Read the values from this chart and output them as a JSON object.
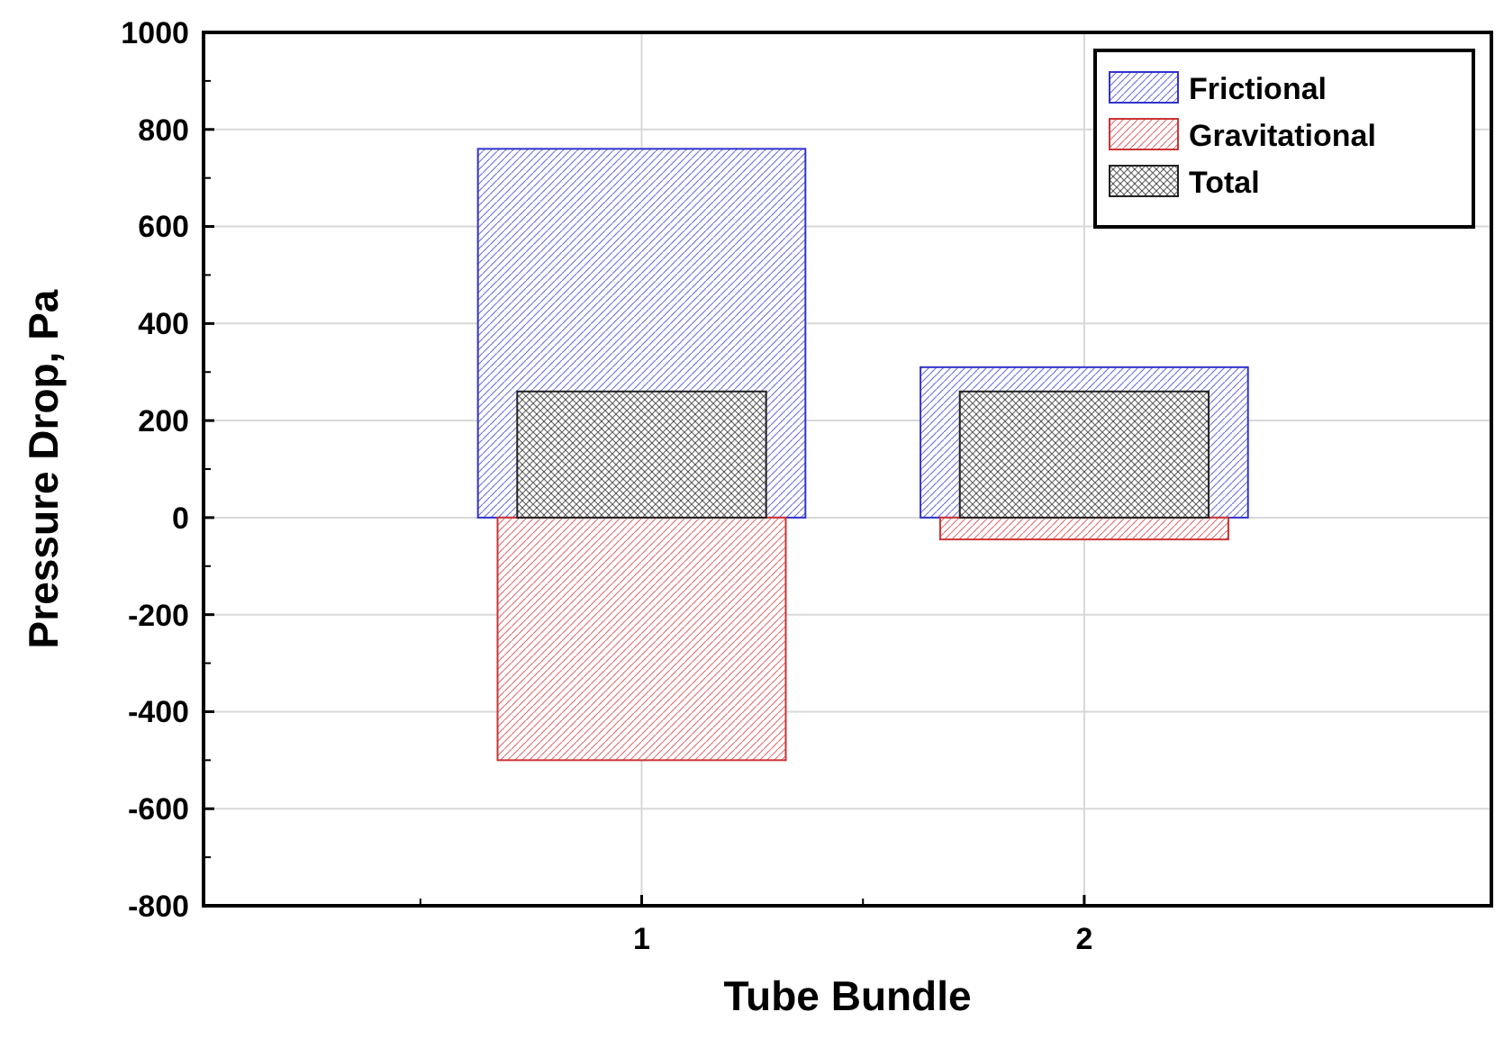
{
  "chart_data": {
    "type": "bar",
    "xlabel": "Tube Bundle",
    "ylabel": "Pressure Drop, Pa",
    "categories": [
      "1",
      "2"
    ],
    "series": [
      {
        "name": "Frictional",
        "color": "#3333cc",
        "values": [
          760,
          310
        ]
      },
      {
        "name": "Gravitational",
        "color": "#cc3333",
        "values": [
          -500,
          -45
        ]
      },
      {
        "name": "Total",
        "color": "#222222",
        "values": [
          260,
          260
        ]
      }
    ],
    "ylim": [
      -800,
      1000
    ],
    "yticks": [
      -800,
      -600,
      -400,
      -200,
      0,
      200,
      400,
      600,
      800,
      1000
    ],
    "grid": true,
    "legend": "top right"
  }
}
